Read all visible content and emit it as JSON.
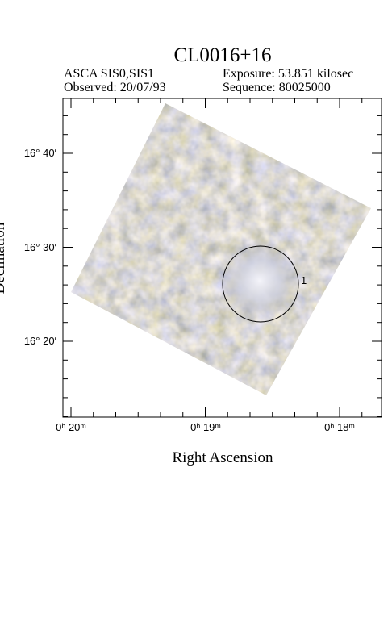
{
  "header": {
    "title": "CL0016+16",
    "instrument": "ASCA SIS0,SIS1",
    "exposure": "Exposure: 53.851 kilosec",
    "observed": "Observed: 20/07/93",
    "sequence": "Sequence: 80025000"
  },
  "axes": {
    "x_label": "Right Ascension",
    "y_label": "Declination",
    "x_ticks": [
      "0ʰ 20ᵐ",
      "0ʰ 19ᵐ",
      "0ʰ 18ᵐ"
    ],
    "y_ticks": [
      "16° 40′",
      "16° 30′",
      "16° 20′"
    ]
  },
  "sources": [
    {
      "label": "1"
    }
  ]
}
